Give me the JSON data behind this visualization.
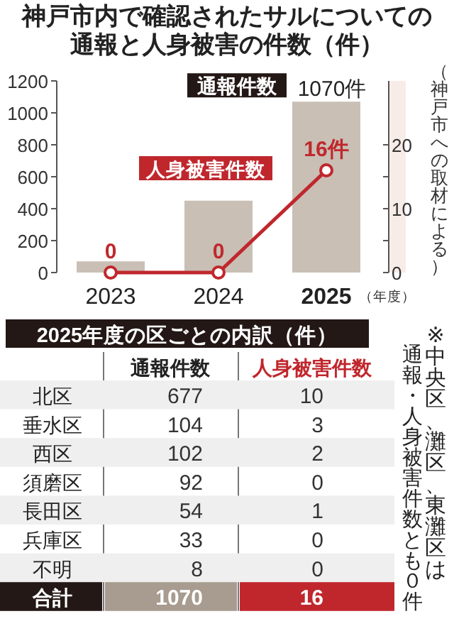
{
  "chart_data": [
    {
      "type": "bar",
      "title": "神戸市内で確認されたサルについての通報と人身被害の件数（件）",
      "xlabel": "（年度）",
      "categories": [
        "2023",
        "2024",
        "2025"
      ],
      "series": [
        {
          "name": "通報件数",
          "color": "#c9bfb5",
          "values": [
            70,
            450,
            1070
          ],
          "value_labels": [
            null,
            null,
            "1070件"
          ]
        },
        {
          "name": "人身被害件数",
          "type": "line",
          "axis": "y2",
          "color": "#c0272d",
          "marker": "circle",
          "values": [
            0,
            0,
            16
          ],
          "value_labels": [
            "0",
            "0",
            "16件"
          ]
        }
      ],
      "ylim": [
        0,
        1200
      ],
      "yticks": [
        0,
        200,
        400,
        600,
        800,
        1000,
        1200
      ],
      "y2lim": [
        0,
        30
      ],
      "y2ticks": [
        0,
        {
          "value": 5,
          "label": null
        },
        10,
        {
          "value": 15,
          "label": null
        },
        20
      ],
      "annotations": [
        "（神戸市への取材による）"
      ]
    },
    {
      "type": "heatmap",
      "title": "2025年度の区ごとの内訳（件）",
      "categories": [
        "通報件数",
        "人身被害件数"
      ],
      "y_categories": [
        "北区",
        "垂水区",
        "西区",
        "須磨区",
        "長田区",
        "兵庫区",
        "不明",
        "合計"
      ],
      "data_labels": true,
      "cells": [
        [
          677,
          10
        ],
        [
          104,
          3
        ],
        [
          102,
          2
        ],
        [
          92,
          0
        ],
        [
          54,
          1
        ],
        [
          33,
          0
        ],
        [
          8,
          0
        ],
        [
          1070,
          16
        ]
      ],
      "annotations": [
        "※中央区、灘区、東灘区は",
        "通報・人身被害件数とも０件"
      ]
    }
  ]
}
